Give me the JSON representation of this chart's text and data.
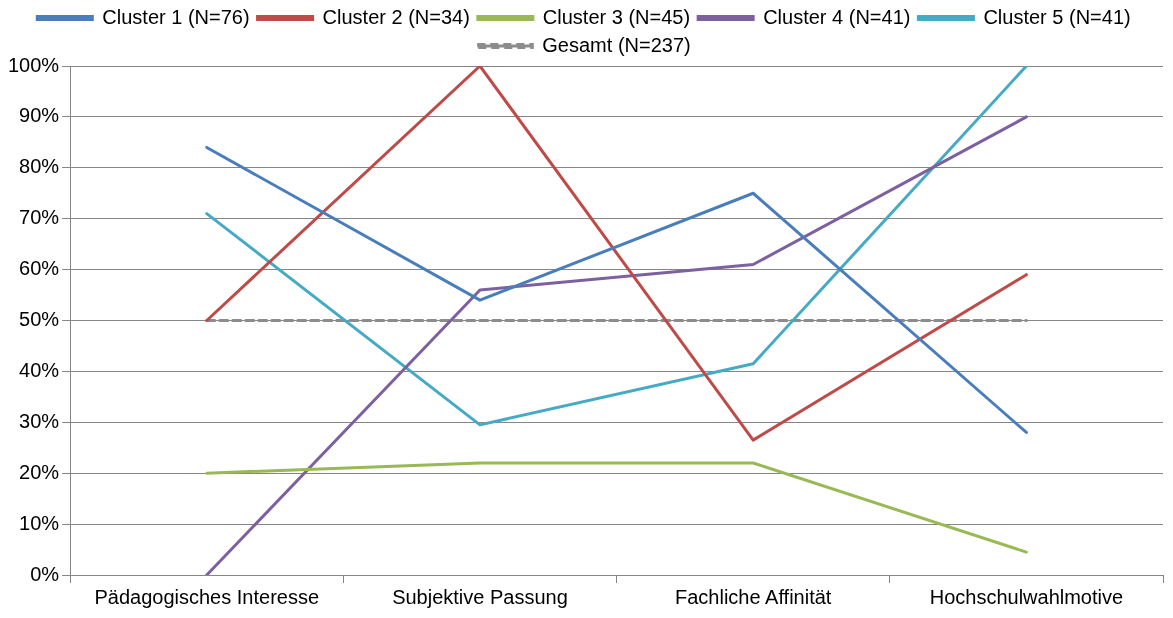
{
  "chart_data": {
    "type": "line",
    "categories": [
      "Pädagogisches Interesse",
      "Subjektive Passung",
      "Fachliche Affinität",
      "Hochschulwahlmotive"
    ],
    "series": [
      {
        "name": "Cluster 1 (N=76)",
        "color": "#4a7ebb",
        "values": [
          84,
          54,
          75,
          28
        ]
      },
      {
        "name": "Cluster 2 (N=34)",
        "color": "#be4b48",
        "values": [
          50,
          100,
          26.5,
          59
        ]
      },
      {
        "name": "Cluster 3 (N=45)",
        "color": "#98b954",
        "values": [
          20,
          22,
          22,
          4.5
        ]
      },
      {
        "name": "Cluster 4 (N=41)",
        "color": "#7d60a0",
        "values": [
          0,
          56,
          61,
          90
        ]
      },
      {
        "name": "Cluster 5 (N=41)",
        "color": "#46aac5",
        "values": [
          71,
          29.5,
          41.5,
          100
        ]
      },
      {
        "name": "Gesamt (N=237)",
        "color": "#8c8c8c",
        "values": [
          50,
          50,
          50,
          50
        ],
        "line_style": "dashed"
      }
    ],
    "ylim": [
      0,
      100
    ],
    "yticks": [
      {
        "value": 0,
        "label": "0%"
      },
      {
        "value": 10,
        "label": "10%"
      },
      {
        "value": 20,
        "label": "20%"
      },
      {
        "value": 30,
        "label": "30%"
      },
      {
        "value": 40,
        "label": "40%"
      },
      {
        "value": 50,
        "label": "50%"
      },
      {
        "value": 60,
        "label": "60%"
      },
      {
        "value": 70,
        "label": "70%"
      },
      {
        "value": 80,
        "label": "80%"
      },
      {
        "value": 90,
        "label": "90%"
      },
      {
        "value": 100,
        "label": "100%"
      }
    ],
    "grid": "y",
    "legend": "top",
    "marker": "none"
  }
}
